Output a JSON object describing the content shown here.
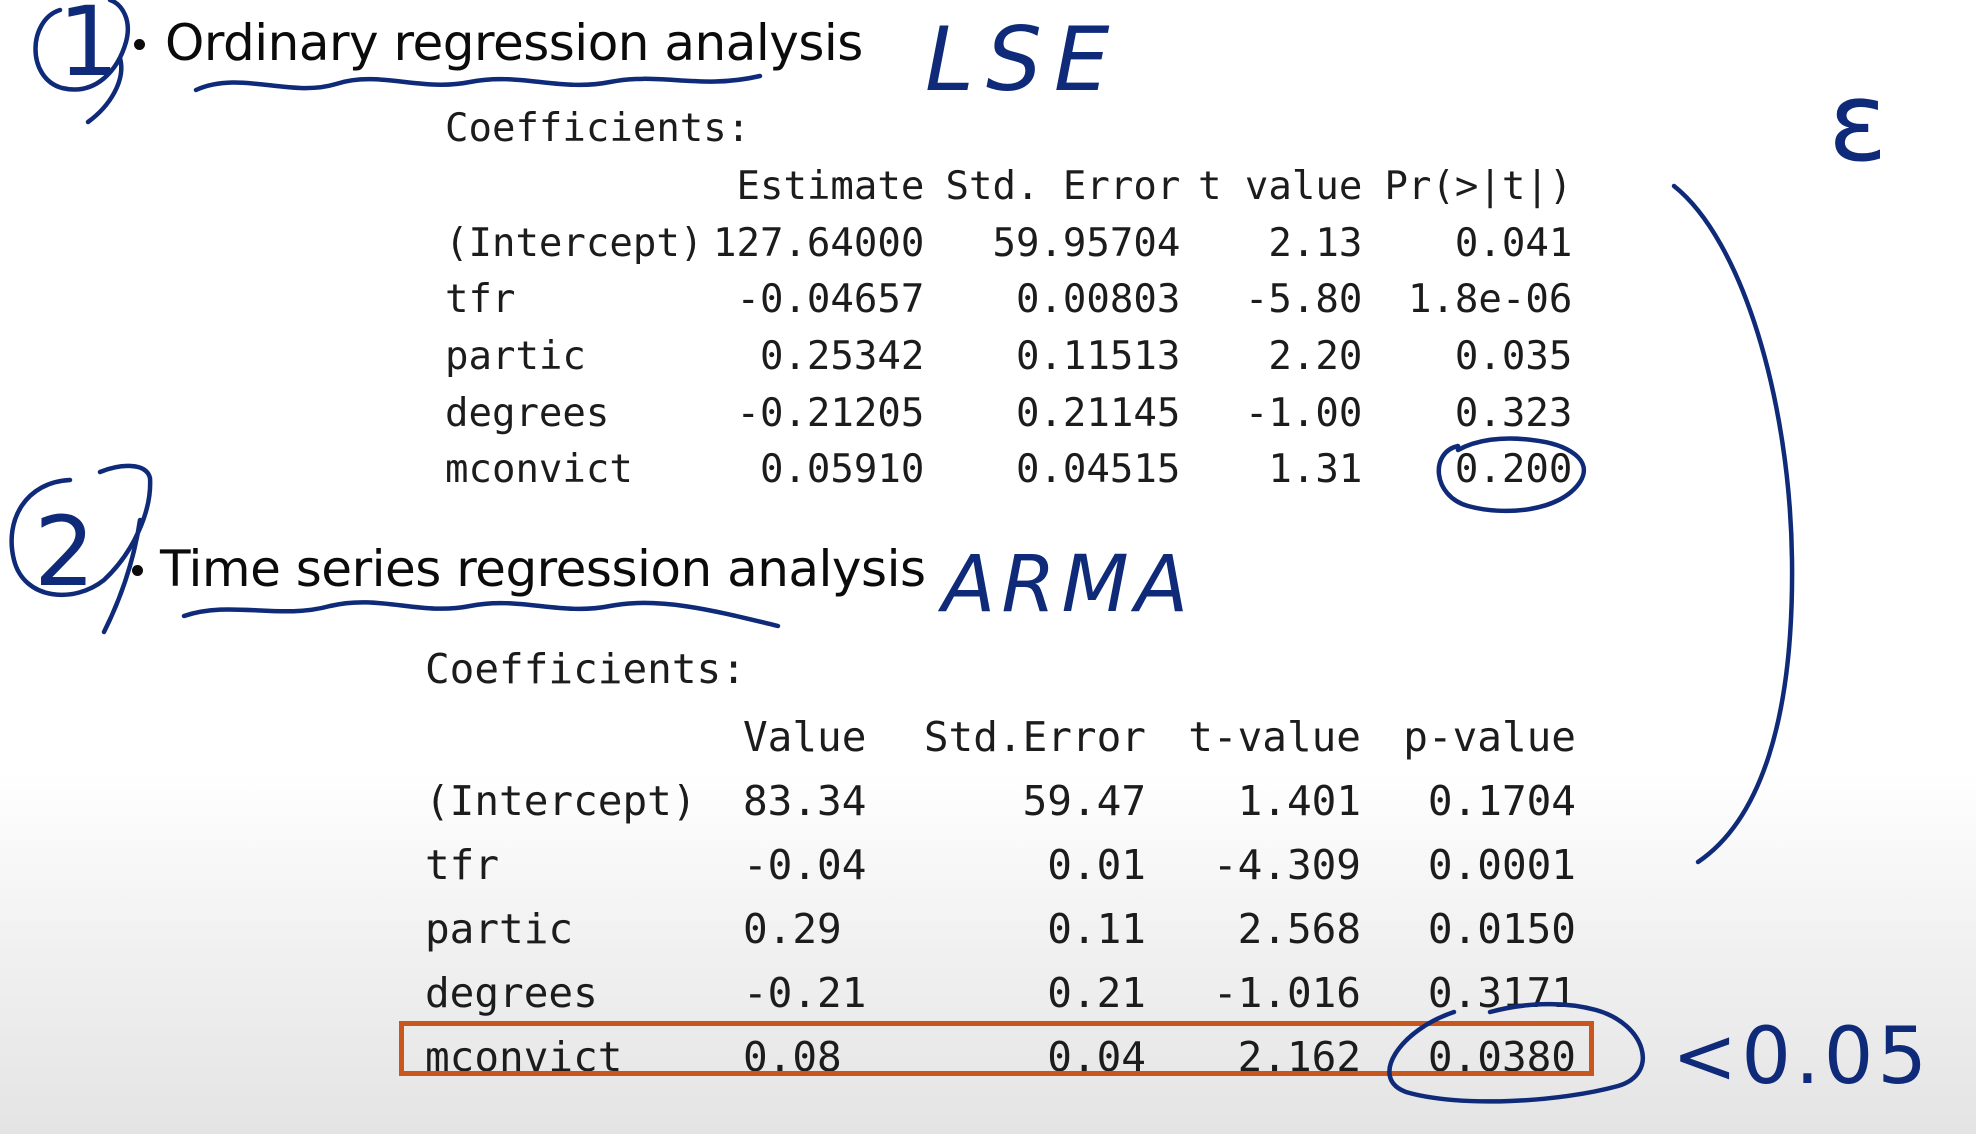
{
  "section1": {
    "heading": "Ordinary regression analysis",
    "coef_label": "Coefficients:",
    "columns": [
      "",
      "Estimate",
      "Std. Error",
      "t value",
      "Pr(>|t|)"
    ],
    "rows": [
      [
        "(Intercept)",
        "127.64000",
        "59.95704",
        "2.13",
        "0.041"
      ],
      [
        "tfr",
        "-0.04657",
        "0.00803",
        "-5.80",
        "1.8e-06"
      ],
      [
        "partic",
        "0.25342",
        "0.11513",
        "2.20",
        "0.035"
      ],
      [
        "degrees",
        "-0.21205",
        "0.21145",
        "-1.00",
        "0.323"
      ],
      [
        "mconvict",
        "0.05910",
        "0.04515",
        "1.31",
        "0.200"
      ]
    ]
  },
  "section2": {
    "heading": "Time series regression analysis",
    "coef_label": "Coefficients:",
    "columns": [
      "",
      "Value",
      "Std.Error",
      "t-value",
      "p-value"
    ],
    "rows": [
      [
        "(Intercept)",
        "83.34",
        "59.47",
        "1.401",
        "0.1704"
      ],
      [
        "tfr",
        "-0.04",
        "0.01",
        "-4.309",
        "0.0001"
      ],
      [
        "partic",
        "0.29",
        "0.11",
        "2.568",
        "0.0150"
      ],
      [
        "degrees",
        "-0.21",
        "0.21",
        "-1.016",
        "0.3171"
      ],
      [
        "mconvict",
        "0.08",
        "0.04",
        "2.162",
        "0.0380"
      ]
    ]
  },
  "annotations": {
    "number1": "1",
    "number2": "2",
    "lse": "LSE",
    "arma": "ARMA",
    "epsilon": "ε",
    "threshold": "<0.05",
    "ink_color": "#0e2a78",
    "highlight_color": "#c8561e"
  }
}
